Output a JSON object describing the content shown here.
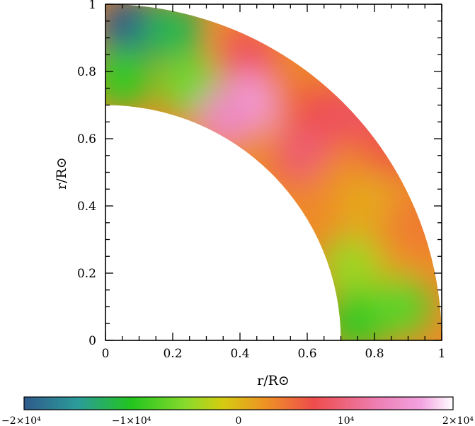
{
  "chart_data": [
    {
      "type": "heatmap",
      "title": "",
      "xlabel": "r/R⊙",
      "ylabel": "r/R⊙",
      "xlim": [
        0,
        1
      ],
      "ylim": [
        0,
        1
      ],
      "xticks": [
        0,
        0.2,
        0.4,
        0.6,
        0.8,
        1
      ],
      "yticks": [
        0,
        0.2,
        0.4,
        0.6,
        0.8,
        1
      ],
      "xtick_labels": [
        "0",
        "0.2",
        "0.4",
        "0.6",
        "0.8",
        "1"
      ],
      "ytick_labels": [
        "0",
        "0.2",
        "0.4",
        "0.6",
        "0.8",
        "1"
      ],
      "domain": {
        "shape": "quarter annulus",
        "r_inner": 0.7,
        "r_outer": 1.0
      },
      "approximate_field_samples": [
        {
          "x": 0.07,
          "y": 0.93,
          "value": -20000
        },
        {
          "x": 0.2,
          "y": 0.92,
          "value": -12000
        },
        {
          "x": 0.05,
          "y": 0.78,
          "value": -9000
        },
        {
          "x": 0.25,
          "y": 0.76,
          "value": -6000
        },
        {
          "x": 0.42,
          "y": 0.84,
          "value": 8000
        },
        {
          "x": 0.43,
          "y": 0.7,
          "value": 17000
        },
        {
          "x": 0.36,
          "y": 0.66,
          "value": 14000
        },
        {
          "x": 0.58,
          "y": 0.72,
          "value": 4000
        },
        {
          "x": 0.64,
          "y": 0.66,
          "value": 7000
        },
        {
          "x": 0.59,
          "y": 0.55,
          "value": 9000
        },
        {
          "x": 0.7,
          "y": 0.45,
          "value": 3000
        },
        {
          "x": 0.78,
          "y": 0.4,
          "value": 1000
        },
        {
          "x": 0.84,
          "y": 0.26,
          "value": 2500
        },
        {
          "x": 0.73,
          "y": 0.22,
          "value": -4000
        },
        {
          "x": 0.75,
          "y": 0.06,
          "value": -9000
        },
        {
          "x": 0.88,
          "y": 0.1,
          "value": -7000
        },
        {
          "x": 0.93,
          "y": 0.35,
          "value": 4000
        },
        {
          "x": 0.85,
          "y": 0.58,
          "value": 6000
        },
        {
          "x": 0.75,
          "y": 0.68,
          "value": 8000
        }
      ],
      "colorbar": {
        "range": [
          -20000,
          20000
        ],
        "tick_values": [
          -20000,
          -10000,
          0,
          10000,
          20000
        ],
        "tick_labels": [
          "−2×10⁴",
          "−1×10⁴",
          "0",
          "10⁴",
          "2×10⁴"
        ],
        "colors": [
          {
            "value": -20000,
            "color": "#2f5a8c"
          },
          {
            "value": -15000,
            "color": "#2b9c9a"
          },
          {
            "value": -10000,
            "color": "#22c51e"
          },
          {
            "value": -5000,
            "color": "#86da2c"
          },
          {
            "value": -1500,
            "color": "#d5cc10"
          },
          {
            "value": 2500,
            "color": "#ee9224"
          },
          {
            "value": 7000,
            "color": "#ee4c4c"
          },
          {
            "value": 13000,
            "color": "#ed7fb4"
          },
          {
            "value": 17000,
            "color": "#f2a2e0"
          },
          {
            "value": 20000,
            "color": "#ffffff"
          }
        ]
      }
    }
  ]
}
